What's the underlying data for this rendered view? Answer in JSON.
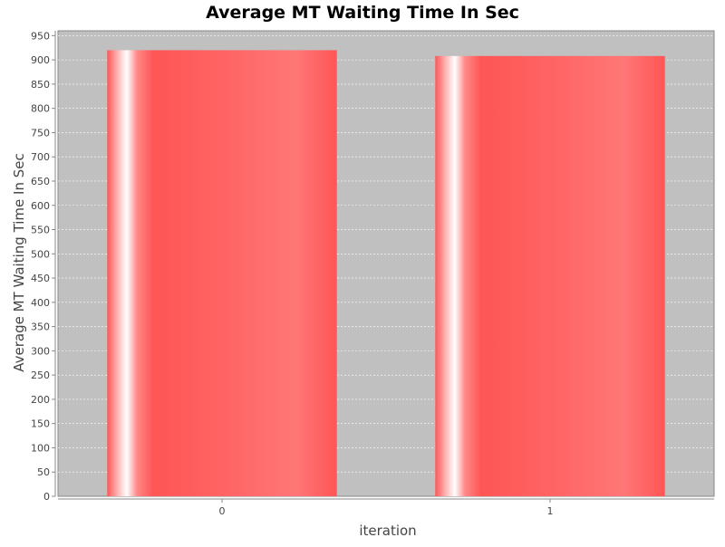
{
  "chart_data": {
    "type": "bar",
    "title": "Average MT Waiting Time In Sec",
    "xlabel": "iteration",
    "ylabel": "Average MT Waiting Time In Sec",
    "categories": [
      "0",
      "1"
    ],
    "values": [
      920,
      908
    ],
    "ylim": [
      0,
      960
    ],
    "yticks": [
      0,
      50,
      100,
      150,
      200,
      250,
      300,
      350,
      400,
      450,
      500,
      550,
      600,
      650,
      700,
      750,
      800,
      850,
      900,
      950
    ],
    "grid": true,
    "legend": "none",
    "colors": {
      "plot_background": "#c0c0c0",
      "bar": "#ff5555",
      "bar_highlight": "#ffffff",
      "gridline": "#ffffff",
      "text": "#444444"
    }
  }
}
